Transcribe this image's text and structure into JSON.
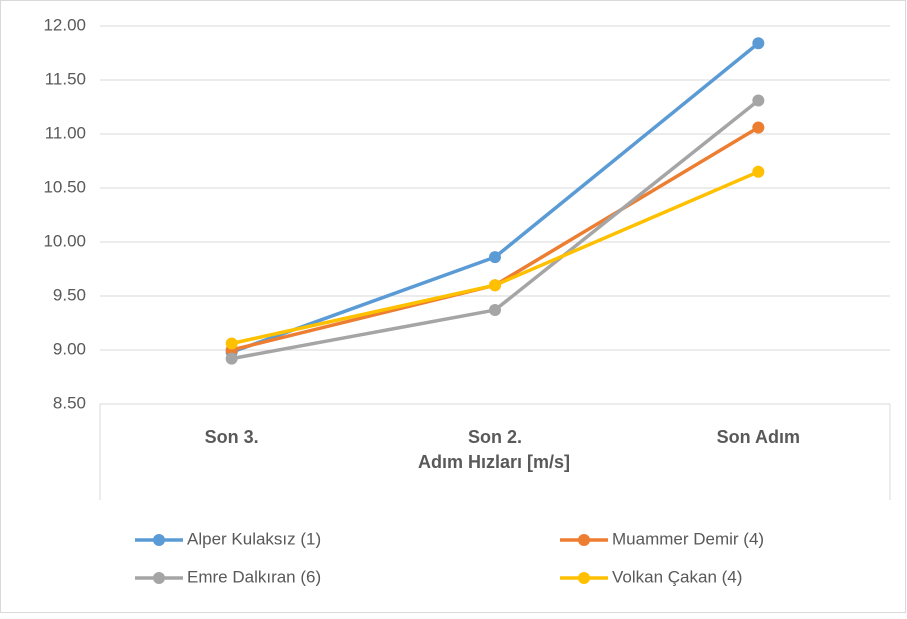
{
  "chart_data": {
    "type": "line",
    "categories": [
      "Son 3.",
      "Son 2.",
      "Son Adım"
    ],
    "x_label": "Adım Hızları [m/s]",
    "series": [
      {
        "name": "Alper Kulaksız (1)",
        "color": "#5b9bd5",
        "values": [
          8.98,
          9.86,
          11.84
        ]
      },
      {
        "name": "Muammer Demir (4)",
        "color": "#ed7d31",
        "values": [
          9.0,
          9.6,
          11.06
        ]
      },
      {
        "name": "Emre Dalkıran (6)",
        "color": "#a5a5a5",
        "values": [
          8.92,
          9.37,
          11.31
        ]
      },
      {
        "name": "Volkan Çakan (4)",
        "color": "#ffc000",
        "values": [
          9.06,
          9.6,
          10.65
        ]
      }
    ],
    "ylim": [
      8.5,
      12.0
    ],
    "yticks": [
      {
        "value": 8.5,
        "label": "8.50"
      },
      {
        "value": 9.0,
        "label": "9.00"
      },
      {
        "value": 9.5,
        "label": "9.50"
      },
      {
        "value": 10.0,
        "label": "10.00"
      },
      {
        "value": 10.5,
        "label": "10.50"
      },
      {
        "value": 11.0,
        "label": "11.00"
      },
      {
        "value": 11.5,
        "label": "11.50"
      },
      {
        "value": 12.0,
        "label": "12.00"
      }
    ],
    "grid": true
  }
}
